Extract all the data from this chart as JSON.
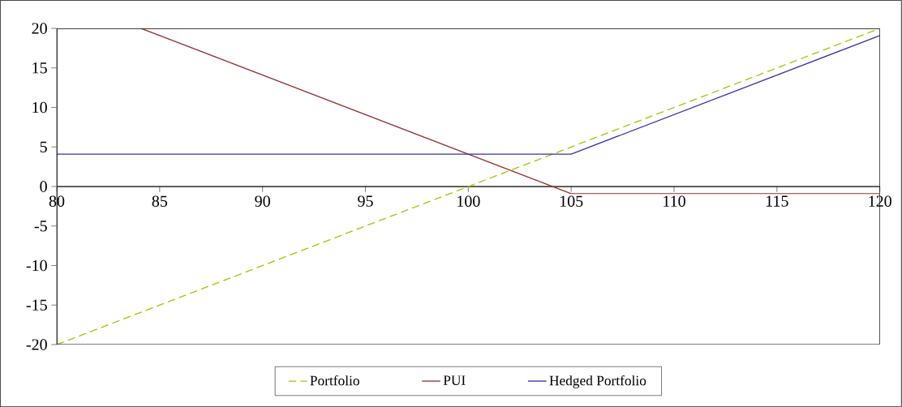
{
  "chart_data": {
    "type": "line",
    "xlim": [
      80,
      120
    ],
    "ylim": [
      -20,
      20
    ],
    "xticks": [
      80,
      85,
      90,
      95,
      100,
      105,
      110,
      115,
      120
    ],
    "yticks": [
      -20,
      -15,
      -10,
      -5,
      0,
      5,
      10,
      15,
      20
    ],
    "legend": "bottom",
    "marker": "none",
    "series": [
      {
        "name": "Portfolio",
        "color": "#99cc00",
        "line_style": "dashed",
        "x": [
          80,
          120
        ],
        "values": [
          -20,
          20
        ]
      },
      {
        "name": "PUI",
        "color": "#993333",
        "line_style": "solid",
        "x": [
          84.1,
          105,
          120
        ],
        "values": [
          20,
          -0.9,
          -0.9
        ]
      },
      {
        "name": "Hedged Portfolio",
        "color": "#3333aa",
        "line_style": "solid",
        "x": [
          80,
          105,
          120
        ],
        "values": [
          4.1,
          4.1,
          19.1
        ]
      }
    ]
  }
}
